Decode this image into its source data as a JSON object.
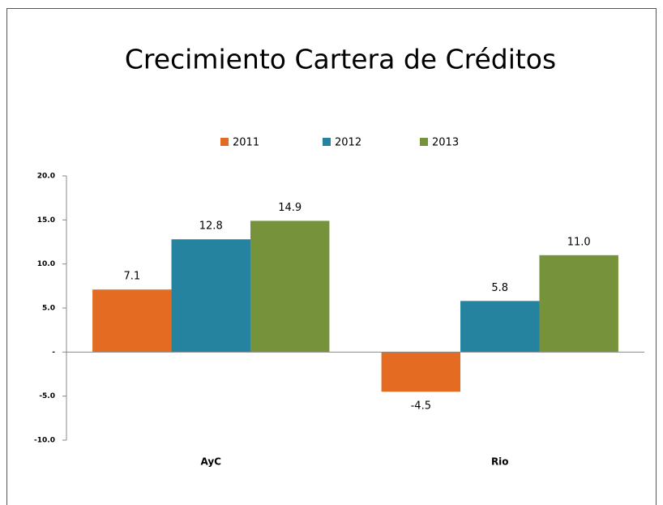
{
  "chart_data": {
    "type": "bar",
    "title": "Crecimiento Cartera de Créditos",
    "categories": [
      "AyC",
      "Rio"
    ],
    "series": [
      {
        "name": "2011",
        "color": "#e46c22",
        "values": [
          7.1,
          -4.5
        ],
        "value_labels": [
          "7.1",
          "-4.5"
        ]
      },
      {
        "name": "2012",
        "color": "#2683a0",
        "values": [
          12.8,
          5.8
        ],
        "value_labels": [
          "12.8",
          "5.8"
        ]
      },
      {
        "name": "2013",
        "color": "#76933c",
        "values": [
          14.9,
          11.0
        ],
        "value_labels": [
          "14.9",
          "11.0"
        ]
      }
    ],
    "ylim": [
      -10,
      20
    ],
    "yticks": [
      {
        "value": -10,
        "label": "-10.0"
      },
      {
        "value": -5,
        "label": "-5.0"
      },
      {
        "value": 0,
        "label": "-"
      },
      {
        "value": 5,
        "label": "5.0"
      },
      {
        "value": 10,
        "label": "10.0"
      },
      {
        "value": 15,
        "label": "15.0"
      },
      {
        "value": 20,
        "label": "20.0"
      }
    ],
    "legend": "top",
    "grid": false
  }
}
